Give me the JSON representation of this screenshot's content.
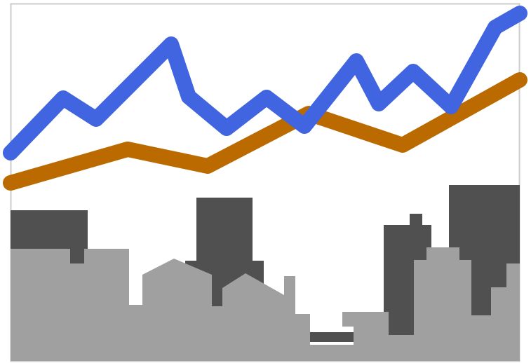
{
  "image": {
    "description_free": true,
    "colors": {
      "background": "#ffffff",
      "frame": "#cccccc",
      "line_blue": "#4164e0",
      "line_orange": "#bb6a00",
      "building_dark": "#505050",
      "building_light": "#a0a0a0"
    },
    "icon": "line-chart-over-city-skyline-icon"
  }
}
